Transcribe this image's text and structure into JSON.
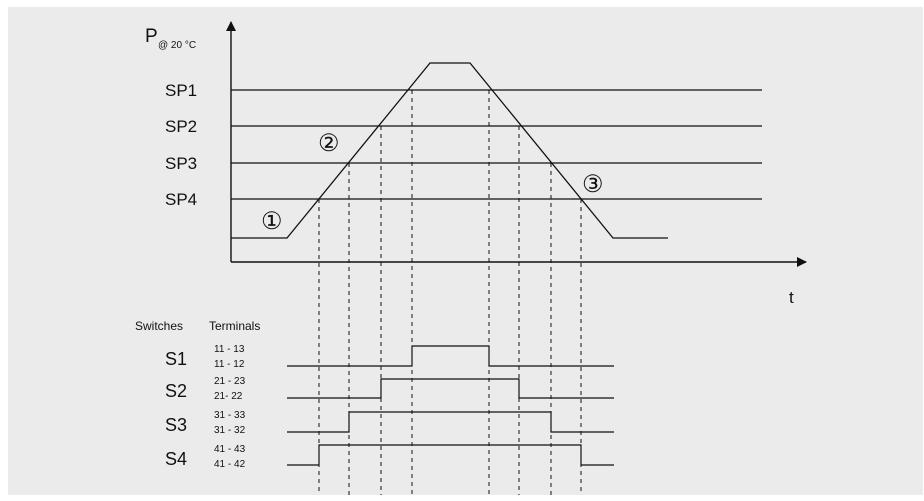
{
  "axes": {
    "y_label_main": "P",
    "y_label_sub": "@ 20 °C",
    "x_label": "t"
  },
  "setpoints": [
    {
      "label": "SP1"
    },
    {
      "label": "SP2"
    },
    {
      "label": "SP3"
    },
    {
      "label": "SP4"
    }
  ],
  "phases": [
    "①",
    "②",
    "③"
  ],
  "switch_table": {
    "col_switches": "Switches",
    "col_terminals": "Terminals",
    "rows": [
      {
        "switch": "S1",
        "terminal_top": "11 - 13",
        "terminal_bottom": "11 - 12"
      },
      {
        "switch": "S2",
        "terminal_top": "21 - 23",
        "terminal_bottom": "21- 22"
      },
      {
        "switch": "S3",
        "terminal_top": "31 - 33",
        "terminal_bottom": "31 - 32"
      },
      {
        "switch": "S4",
        "terminal_top": "41 - 43",
        "terminal_bottom": "41 - 42"
      }
    ]
  },
  "colors": {
    "background": "#ebebeb",
    "line": "#111111"
  }
}
